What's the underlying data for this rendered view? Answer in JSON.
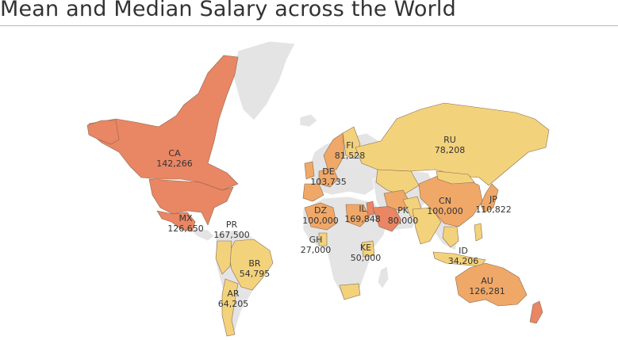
{
  "title": "Mean and Median Salary across the World",
  "colors": {
    "no_data": "#e4e4e4",
    "low": "#f3d27c",
    "mid": "#f0a868",
    "high": "#e98664",
    "border": "#ffffff"
  },
  "countries": [
    {
      "code": "CA",
      "value": "142,266",
      "level": "high"
    },
    {
      "code": "MX",
      "value": "126,650",
      "level": "high"
    },
    {
      "code": "PR",
      "value": "167,500",
      "level": "high"
    },
    {
      "code": "BR",
      "value": "54,795",
      "level": "low"
    },
    {
      "code": "AR",
      "value": "64,205",
      "level": "low"
    },
    {
      "code": "FI",
      "value": "81,528",
      "level": "low"
    },
    {
      "code": "DE",
      "value": "103,735",
      "level": "mid"
    },
    {
      "code": "RU",
      "value": "78,208",
      "level": "low"
    },
    {
      "code": "DZ",
      "value": "100,000",
      "level": "mid"
    },
    {
      "code": "IL",
      "value": "169,848",
      "level": "high"
    },
    {
      "code": "PK",
      "value": "80,000",
      "level": "low"
    },
    {
      "code": "CN",
      "value": "100,000",
      "level": "mid"
    },
    {
      "code": "JP",
      "value": "110,822",
      "level": "mid"
    },
    {
      "code": "GH",
      "value": "27,000",
      "level": "low"
    },
    {
      "code": "KE",
      "value": "50,000",
      "level": "low"
    },
    {
      "code": "ID",
      "value": "34,206",
      "level": "low"
    },
    {
      "code": "AU",
      "value": "126,281",
      "level": "mid"
    }
  ]
}
